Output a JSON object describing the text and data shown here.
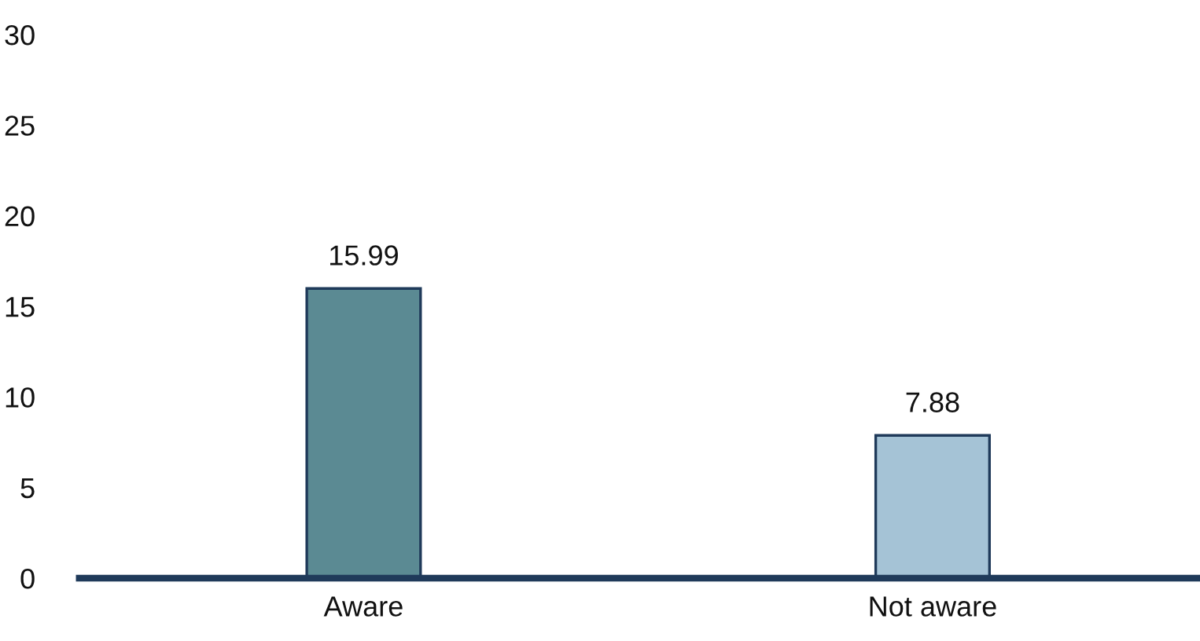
{
  "chart_data": {
    "type": "bar",
    "categories": [
      "Aware",
      "Not aware"
    ],
    "values": [
      15.99,
      7.88
    ],
    "colors": [
      "#5b8a93",
      "#a5c3d6"
    ],
    "ylim": [
      0,
      30
    ],
    "yticks": [
      0,
      5,
      10,
      15,
      20,
      25,
      30
    ],
    "data_labels": true,
    "grid": false,
    "legend": false
  }
}
